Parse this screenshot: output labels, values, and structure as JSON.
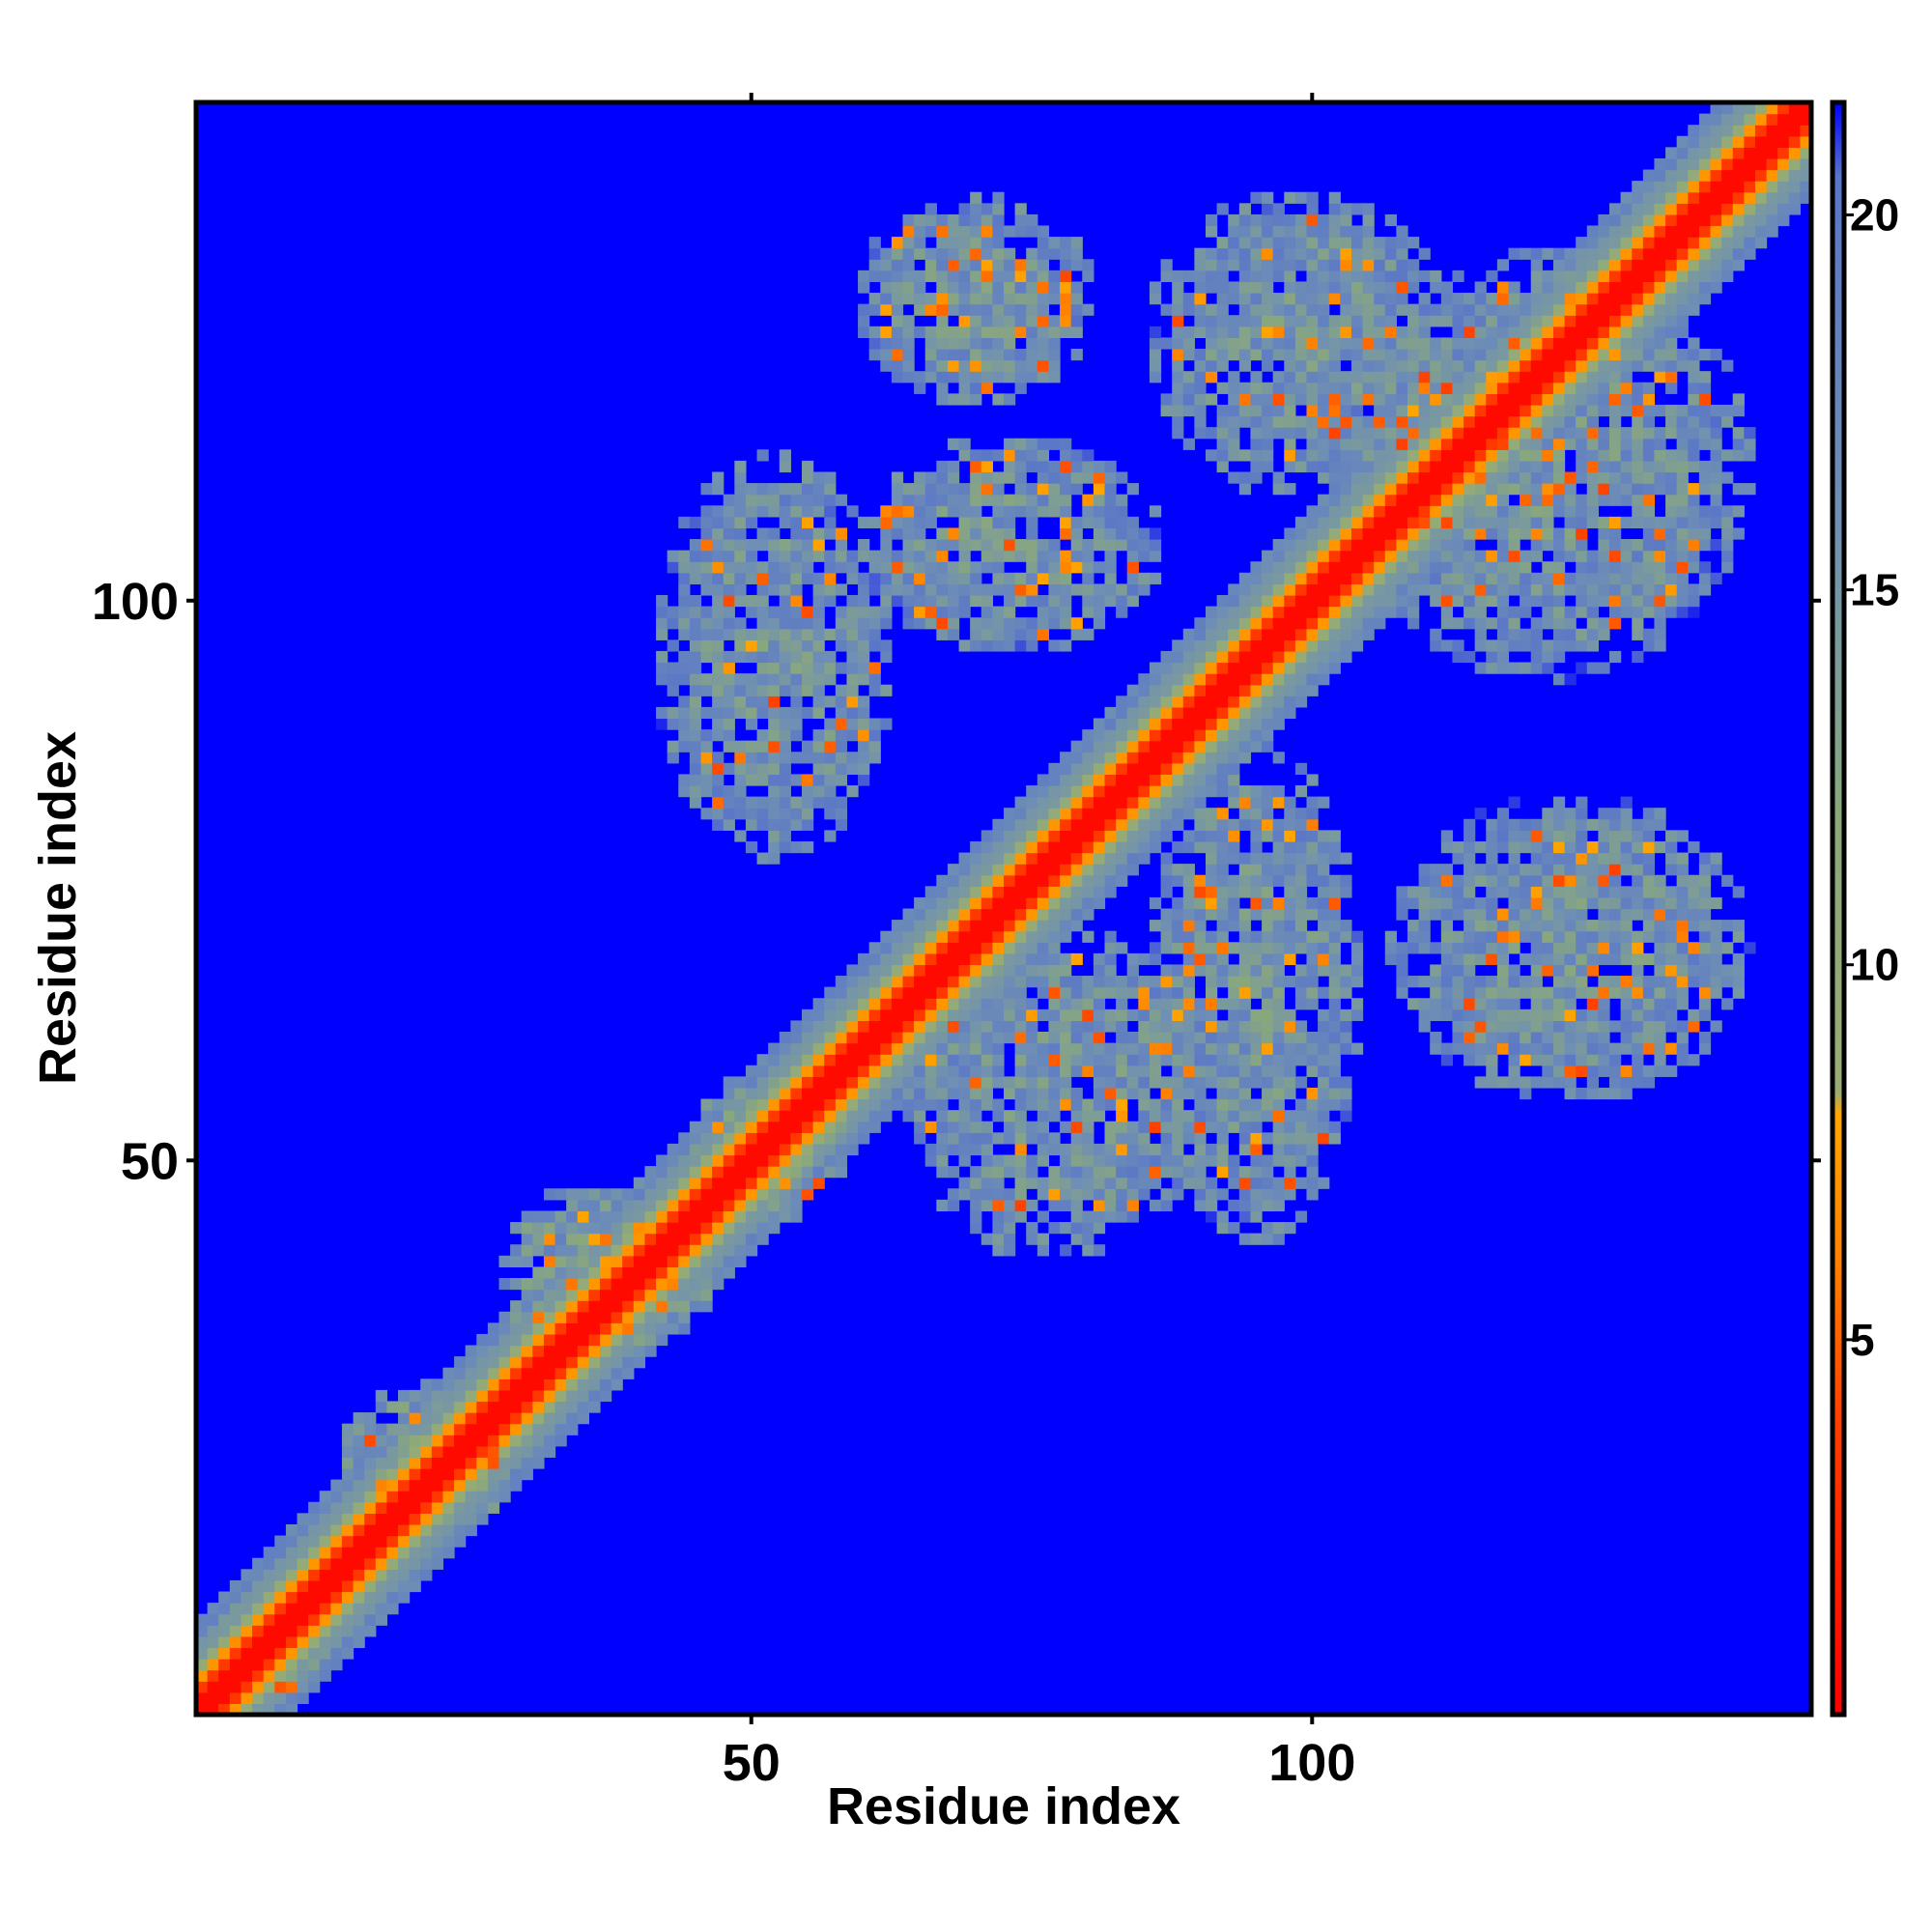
{
  "chart_data": {
    "type": "heatmap",
    "title": "",
    "xlabel": "Residue index",
    "ylabel": "Residue index",
    "n_residues": 144,
    "xlim": [
      1,
      144
    ],
    "ylim": [
      1,
      144
    ],
    "x_ticks": [
      50,
      100
    ],
    "y_ticks": [
      50,
      100
    ],
    "x_tick_labels": [
      "50",
      "100"
    ],
    "y_tick_labels": [
      "50",
      "100"
    ],
    "colorbar": {
      "range": [
        0,
        21.5
      ],
      "ticks": [
        5,
        10,
        15,
        20
      ],
      "tick_labels": [
        "5",
        "10",
        "15",
        "20"
      ],
      "stops": [
        {
          "value": 0,
          "color": "#ff0000"
        },
        {
          "value": 4,
          "color": "#ff4000"
        },
        {
          "value": 6,
          "color": "#ff8000"
        },
        {
          "value": 8,
          "color": "#ffa500"
        },
        {
          "value": 8.3,
          "color": "#9aac74"
        },
        {
          "value": 12,
          "color": "#8aa87c"
        },
        {
          "value": 16,
          "color": "#6f8fb4"
        },
        {
          "value": 20.5,
          "color": "#5a76c8"
        },
        {
          "value": 21.5,
          "color": "#0000ff"
        }
      ]
    },
    "background_value": 21.5,
    "diagonal_value": 0,
    "contact_regions": [
      {
        "x": [
          2,
          12
        ],
        "y": [
          2,
          12
        ],
        "value": 13
      },
      {
        "x": [
          14,
          30
        ],
        "y": [
          18,
          30
        ],
        "value": 13
      },
      {
        "x": [
          28,
          46
        ],
        "y": [
          32,
          48
        ],
        "value": 13
      },
      {
        "x": [
          45,
          58
        ],
        "y": [
          45,
          58
        ],
        "value": 13
      },
      {
        "x": [
          42,
          62
        ],
        "y": [
          78,
          112
        ],
        "value": 14
      },
      {
        "x": [
          60,
          80
        ],
        "y": [
          118,
          136
        ],
        "value": 14
      },
      {
        "x": [
          60,
          86
        ],
        "y": [
          96,
          114
        ],
        "value": 14
      },
      {
        "x": [
          64,
          90
        ],
        "y": [
          42,
          70
        ],
        "value": 14
      },
      {
        "x": [
          86,
          104
        ],
        "y": [
          44,
          86
        ],
        "value": 14
      },
      {
        "x": [
          86,
          112
        ],
        "y": [
          110,
          136
        ],
        "value": 14
      },
      {
        "x": [
          104,
          138
        ],
        "y": [
          94,
          130
        ],
        "value": 14
      },
      {
        "x": [
          108,
          138
        ],
        "y": [
          56,
          82
        ],
        "value": 14
      }
    ],
    "colors": {
      "background": "#0000ff",
      "diagonal": "#ff0000",
      "near_contact": "#ffa500"
    }
  }
}
